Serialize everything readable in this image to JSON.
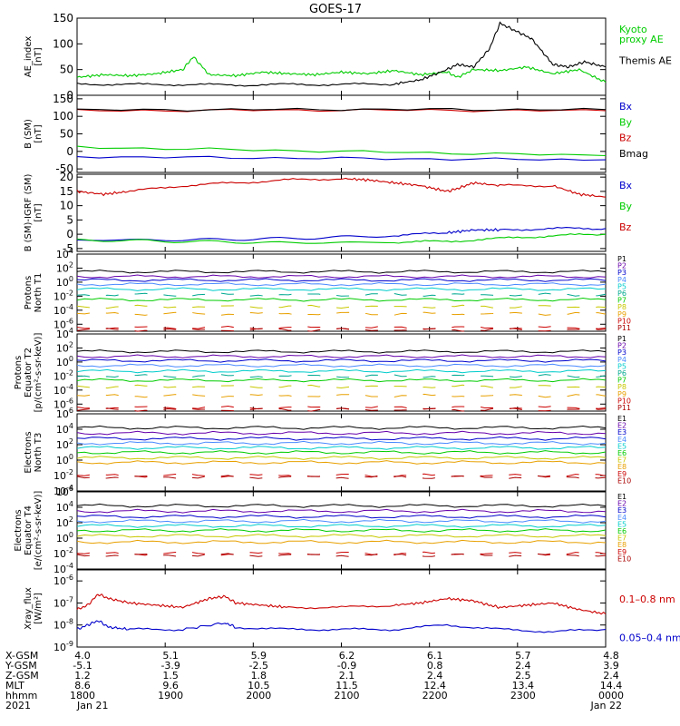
{
  "title": "GOES-17",
  "colors": {
    "black": "#000000",
    "green": "#00cc00",
    "blue": "#0000cc",
    "red": "#cc0000",
    "purple": "#6600aa",
    "lightblue": "#4a8aff",
    "cyan": "#00cccc",
    "teal": "#00a890",
    "yellow": "#c8c800",
    "orange": "#e8a000",
    "darkred": "#aa0000"
  },
  "chart_data": [
    {
      "type": "line",
      "ylabel": "AE_index\n[nT]",
      "ylim": [
        0,
        150
      ],
      "yticks": [
        "0",
        "50",
        "100",
        "150"
      ],
      "series": [
        {
          "name": "Kyoto\nproxy AE",
          "color": "#00cc00",
          "x": [
            0,
            0.05,
            0.1,
            0.15,
            0.2,
            0.22,
            0.25,
            0.3,
            0.35,
            0.4,
            0.45,
            0.5,
            0.55,
            0.6,
            0.65,
            0.7,
            0.72,
            0.75,
            0.8,
            0.85,
            0.9,
            0.95,
            1
          ],
          "y": [
            35,
            40,
            38,
            42,
            50,
            75,
            40,
            38,
            45,
            42,
            40,
            45,
            42,
            48,
            40,
            45,
            35,
            50,
            48,
            55,
            42,
            50,
            25
          ]
        },
        {
          "name": "Themis AE",
          "color": "#000000",
          "x": [
            0,
            0.1,
            0.2,
            0.3,
            0.4,
            0.5,
            0.6,
            0.65,
            0.7,
            0.72,
            0.75,
            0.78,
            0.8,
            0.83,
            0.86,
            0.9,
            0.93,
            0.96,
            1
          ],
          "y": [
            22,
            21,
            21,
            20,
            21,
            21,
            22,
            30,
            50,
            60,
            55,
            90,
            140,
            125,
            110,
            60,
            55,
            65,
            55
          ]
        }
      ]
    },
    {
      "type": "line",
      "ylabel": "B (SM)\n[nT]",
      "ylim": [
        -60,
        160
      ],
      "yticks": [
        "-50",
        "0",
        "50",
        "100",
        "150"
      ],
      "series": [
        {
          "name": "Bx",
          "color": "#0000cc",
          "x": [
            0,
            0.5,
            1
          ],
          "y": [
            -15,
            -20,
            -24
          ]
        },
        {
          "name": "By",
          "color": "#00cc00",
          "x": [
            0,
            0.5,
            1
          ],
          "y": [
            12,
            0,
            -12
          ]
        },
        {
          "name": "Bz",
          "color": "#cc0000",
          "x": [
            0,
            0.5,
            1
          ],
          "y": [
            116,
            118,
            116
          ]
        },
        {
          "name": "Bmag",
          "color": "#000000",
          "x": [
            0,
            0.5,
            1
          ],
          "y": [
            118,
            120,
            119
          ]
        }
      ]
    },
    {
      "type": "line",
      "ylabel": "B (SM)-IGRF (SM)\n[nT]",
      "ylim": [
        -6,
        21
      ],
      "yticks": [
        "-5",
        "0",
        "5",
        "10",
        "15",
        "20"
      ],
      "series": [
        {
          "name": "Bx",
          "color": "#0000cc",
          "x": [
            0,
            0.2,
            0.4,
            0.6,
            0.7,
            0.75,
            0.8,
            0.9,
            1
          ],
          "y": [
            -2,
            -2,
            -1.5,
            -0.5,
            0.5,
            1.5,
            1.5,
            2,
            2
          ]
        },
        {
          "name": "By",
          "color": "#00cc00",
          "x": [
            0,
            0.2,
            0.4,
            0.6,
            0.7,
            0.8,
            0.9,
            1
          ],
          "y": [
            -2,
            -2.5,
            -3,
            -2.8,
            -2.5,
            -1.5,
            -0.5,
            0
          ]
        },
        {
          "name": "Bz",
          "color": "#cc0000",
          "x": [
            0,
            0.05,
            0.1,
            0.2,
            0.3,
            0.4,
            0.5,
            0.55,
            0.6,
            0.65,
            0.7,
            0.72,
            0.75,
            0.8,
            0.9,
            0.95,
            1
          ],
          "y": [
            15,
            14,
            15,
            17,
            18,
            19,
            19.5,
            19,
            18,
            17,
            15,
            16,
            18,
            17,
            17,
            14,
            13
          ]
        }
      ]
    },
    {
      "type": "line",
      "scale": "log",
      "ylabel": "Protons\nNorth T1",
      "ylim_exp": [
        -7,
        4
      ],
      "ytick_exps": [
        4,
        2,
        0,
        -2,
        -4,
        -6
      ],
      "levels": [
        {
          "name": "P1",
          "color": "#000000",
          "level": 1.5
        },
        {
          "name": "P2",
          "color": "#6600aa",
          "level": 0.8
        },
        {
          "name": "P3",
          "color": "#0000cc",
          "level": 0.3
        },
        {
          "name": "P4",
          "color": "#4a8aff",
          "level": -0.3
        },
        {
          "name": "P5",
          "color": "#00cccc",
          "level": -1
        },
        {
          "name": "P6",
          "color": "#00a890",
          "level": -1.8
        },
        {
          "name": "P7",
          "color": "#00cc00",
          "level": -2.5
        },
        {
          "name": "P8",
          "color": "#c8c800",
          "level": -3.5
        },
        {
          "name": "P9",
          "color": "#e8a000",
          "level": -4.5
        },
        {
          "name": "P10",
          "color": "#cc0000",
          "level": -6.5
        },
        {
          "name": "P11",
          "color": "#aa0000",
          "level": -6.8
        }
      ]
    },
    {
      "type": "line",
      "scale": "log",
      "ylabel": "Protons\nEquator T2\n[p/(cm²-s-sr-keV)]",
      "ylim_exp": [
        -7,
        4
      ],
      "ytick_exps": [
        4,
        2,
        0,
        -2,
        -4,
        -6
      ],
      "levels": [
        {
          "name": "P1",
          "color": "#000000",
          "level": 1.5
        },
        {
          "name": "P2",
          "color": "#6600aa",
          "level": 0.8
        },
        {
          "name": "P3",
          "color": "#0000cc",
          "level": 0.2
        },
        {
          "name": "P4",
          "color": "#4a8aff",
          "level": -0.5
        },
        {
          "name": "P5",
          "color": "#00cccc",
          "level": -1.3
        },
        {
          "name": "P6",
          "color": "#00a890",
          "level": -2
        },
        {
          "name": "P7",
          "color": "#00cc00",
          "level": -2.6
        },
        {
          "name": "P8",
          "color": "#c8c800",
          "level": -3.5
        },
        {
          "name": "P9",
          "color": "#e8a000",
          "level": -4.8
        },
        {
          "name": "P10",
          "color": "#cc0000",
          "level": -6.5
        },
        {
          "name": "P11",
          "color": "#aa0000",
          "level": -6.8
        }
      ]
    },
    {
      "type": "line",
      "scale": "log",
      "ylabel": "Electrons\nNorth T3",
      "ylim_exp": [
        -4,
        6
      ],
      "ytick_exps": [
        6,
        4,
        2,
        0,
        -2,
        -4
      ],
      "levels": [
        {
          "name": "E1",
          "color": "#000000",
          "level": 4.2
        },
        {
          "name": "E2",
          "color": "#6600aa",
          "level": 3.5
        },
        {
          "name": "E3",
          "color": "#0000cc",
          "level": 2.8
        },
        {
          "name": "E4",
          "color": "#4a8aff",
          "level": 2.2
        },
        {
          "name": "E5",
          "color": "#00cccc",
          "level": 1.6
        },
        {
          "name": "E6",
          "color": "#00cc00",
          "level": 1
        },
        {
          "name": "E7",
          "color": "#c8c800",
          "level": 0.3
        },
        {
          "name": "E8",
          "color": "#e8a000",
          "level": -0.3
        },
        {
          "name": "E9",
          "color": "#cc0000",
          "level": -2
        },
        {
          "name": "E10",
          "color": "#aa0000",
          "level": -2.2
        }
      ]
    },
    {
      "type": "line",
      "scale": "log",
      "ylabel": "Electrons\nEquator T4\n[e/(cm²-s-sr-keV)]",
      "ylim_exp": [
        -4,
        6
      ],
      "ytick_exps": [
        6,
        4,
        2,
        0,
        -2,
        -4
      ],
      "levels": [
        {
          "name": "E1",
          "color": "#000000",
          "level": 4.2
        },
        {
          "name": "E2",
          "color": "#6600aa",
          "level": 3.5
        },
        {
          "name": "E3",
          "color": "#0000cc",
          "level": 2.8
        },
        {
          "name": "E4",
          "color": "#4a8aff",
          "level": 2.2
        },
        {
          "name": "E5",
          "color": "#00cccc",
          "level": 1.6
        },
        {
          "name": "E6",
          "color": "#00cc00",
          "level": 1
        },
        {
          "name": "E7",
          "color": "#c8c800",
          "level": 0.3
        },
        {
          "name": "E8",
          "color": "#e8a000",
          "level": -0.5
        },
        {
          "name": "E9",
          "color": "#cc0000",
          "level": -2
        },
        {
          "name": "E10",
          "color": "#aa0000",
          "level": -2.2
        }
      ]
    },
    {
      "type": "line",
      "scale": "log",
      "ylabel": "Xray_flux\n[W/m²]",
      "ylim_exp": [
        -9,
        -5.5
      ],
      "ytick_exps": [
        -6,
        -7,
        -8,
        -9
      ],
      "series": [
        {
          "name": "0.1–0.8 nm",
          "color": "#cc0000",
          "x": [
            0,
            0.02,
            0.04,
            0.06,
            0.1,
            0.15,
            0.2,
            0.25,
            0.28,
            0.3,
            0.35,
            0.4,
            0.5,
            0.6,
            0.65,
            0.7,
            0.75,
            0.78,
            0.8,
            0.85,
            0.9,
            0.95,
            1
          ],
          "y": [
            -7.3,
            -7.1,
            -6.6,
            -6.8,
            -7.0,
            -7.1,
            -7.2,
            -6.8,
            -6.7,
            -7.0,
            -7.1,
            -7.2,
            -7.2,
            -7.1,
            -7.0,
            -6.8,
            -6.9,
            -7.1,
            -7.2,
            -7.1,
            -7.0,
            -7.3,
            -7.5
          ]
        },
        {
          "name": "0.05–0.4 nm",
          "color": "#0000cc",
          "x": [
            0,
            0.02,
            0.04,
            0.06,
            0.1,
            0.2,
            0.28,
            0.3,
            0.4,
            0.5,
            0.6,
            0.7,
            0.8,
            0.9,
            1
          ],
          "y": [
            -8.2,
            -8.0,
            -7.8,
            -8.1,
            -8.2,
            -8.2,
            -7.9,
            -8.1,
            -8.2,
            -8.2,
            -8.2,
            -8.0,
            -8.2,
            -8.3,
            -8.2
          ]
        }
      ]
    }
  ],
  "xaxis": {
    "rows": [
      "X-GSM",
      "Y-GSM",
      "Z-GSM",
      "MLT",
      "hhmm",
      "2021"
    ],
    "ticks": [
      {
        "x": 0,
        "v": [
          "4.0",
          "-5.1",
          "1.2",
          "8.6",
          "1800",
          "Jan 21"
        ]
      },
      {
        "x": 0.1667,
        "v": [
          "5.1",
          "-3.9",
          "1.5",
          "9.6",
          "1900",
          ""
        ]
      },
      {
        "x": 0.3333,
        "v": [
          "5.9",
          "-2.5",
          "1.8",
          "10.5",
          "2000",
          ""
        ]
      },
      {
        "x": 0.5,
        "v": [
          "6.2",
          "-0.9",
          "2.1",
          "11.5",
          "2100",
          ""
        ]
      },
      {
        "x": 0.6667,
        "v": [
          "6.1",
          "0.8",
          "2.4",
          "12.4",
          "2200",
          ""
        ]
      },
      {
        "x": 0.8333,
        "v": [
          "5.7",
          "2.4",
          "2.5",
          "13.4",
          "2300",
          ""
        ]
      },
      {
        "x": 1,
        "v": [
          "4.8",
          "3.9",
          "2.4",
          "14.4",
          "0000",
          "Jan 22"
        ]
      }
    ]
  }
}
